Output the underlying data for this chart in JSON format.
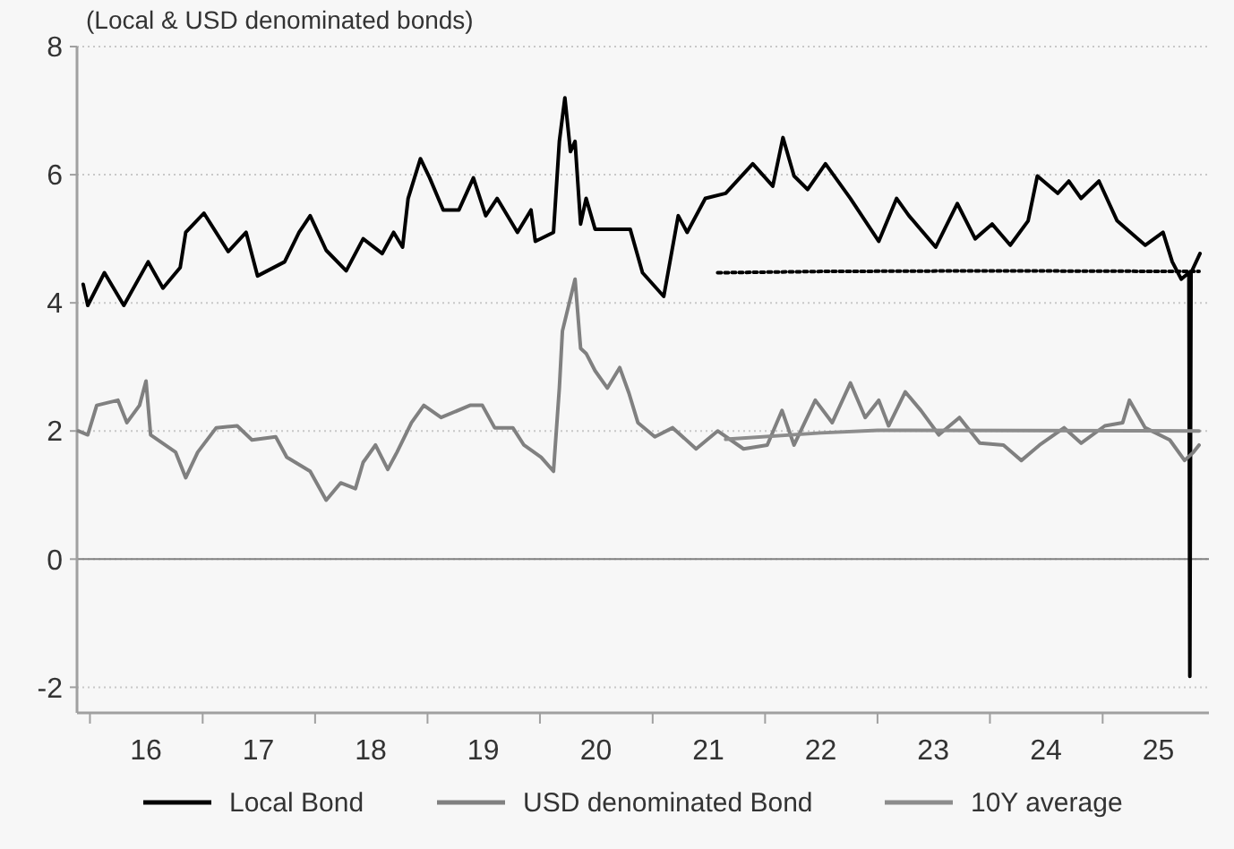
{
  "chart_data": {
    "type": "line",
    "title": "(Local & USD denominated bonds)",
    "xlim": [
      "2015-11-20",
      "2025-12-12"
    ],
    "ylim": [
      -2.4,
      8
    ],
    "xticks": [
      {
        "value": "2016-01-01",
        "label": null
      },
      {
        "value": "2016-07-01",
        "label": "16"
      },
      {
        "value": "2017-01-01",
        "label": null
      },
      {
        "value": "2017-07-01",
        "label": "17"
      },
      {
        "value": "2018-01-01",
        "label": null
      },
      {
        "value": "2018-07-01",
        "label": "18"
      },
      {
        "value": "2019-01-01",
        "label": null
      },
      {
        "value": "2019-07-01",
        "label": "19"
      },
      {
        "value": "2020-01-01",
        "label": null
      },
      {
        "value": "2020-07-01",
        "label": "20"
      },
      {
        "value": "2021-01-01",
        "label": null
      },
      {
        "value": "2021-07-01",
        "label": "21"
      },
      {
        "value": "2022-01-01",
        "label": null
      },
      {
        "value": "2022-07-01",
        "label": "22"
      },
      {
        "value": "2023-01-01",
        "label": null
      },
      {
        "value": "2023-07-01",
        "label": "23"
      },
      {
        "value": "2024-01-01",
        "label": null
      },
      {
        "value": "2024-07-01",
        "label": "24"
      },
      {
        "value": "2025-01-01",
        "label": null
      },
      {
        "value": "2025-07-01",
        "label": "25"
      }
    ],
    "yticks": [
      -2,
      0,
      2,
      4,
      6,
      8
    ],
    "grid": "y",
    "legend": "bottom",
    "ref_lines": [
      {
        "axis": "y",
        "value": 0,
        "color": "#808080"
      }
    ],
    "series": [
      {
        "name": "Local Bond",
        "color": "#000000",
        "x": [
          "2015-12-10",
          "2015-12-25",
          "2016-02-17",
          "2016-04-20",
          "2016-07-08",
          "2016-08-25",
          "2016-10-20",
          "2016-11-07",
          "2017-01-05",
          "2017-03-25",
          "2017-05-22",
          "2017-06-28",
          "2017-09-24",
          "2017-11-10",
          "2017-12-16",
          "2018-02-06",
          "2018-04-12",
          "2018-06-06",
          "2018-08-07",
          "2018-09-13",
          "2018-10-12",
          "2018-10-30",
          "2018-12-09",
          "2019-01-08",
          "2019-02-21",
          "2019-04-13",
          "2019-05-30",
          "2019-07-09",
          "2019-08-15",
          "2019-10-20",
          "2019-12-03",
          "2019-12-17",
          "2020-02-14",
          "2020-03-04",
          "2020-03-22",
          "2020-04-09",
          "2020-04-24",
          "2020-05-12",
          "2020-05-30",
          "2020-06-28",
          "2020-10-20",
          "2020-11-29",
          "2021-02-06",
          "2021-03-25",
          "2021-04-23",
          "2021-06-21",
          "2021-08-26",
          "2021-11-22",
          "2022-01-26",
          "2022-02-28",
          "2022-04-05",
          "2022-05-19",
          "2022-07-16",
          "2022-10-05",
          "2023-01-05",
          "2023-03-04",
          "2023-04-13",
          "2023-07-09",
          "2023-09-17",
          "2023-11-14",
          "2024-01-08",
          "2024-03-07",
          "2024-05-04",
          "2024-06-03",
          "2024-08-08",
          "2024-09-13",
          "2024-10-23",
          "2024-12-20",
          "2025-02-17",
          "2025-05-19",
          "2025-07-16",
          "2025-08-15",
          "2025-09-13",
          "2025-10-08",
          "2025-10-11",
          "2025-10-15",
          "2025-11-13"
        ],
        "values": [
          4.29,
          3.96,
          4.47,
          3.96,
          4.64,
          4.23,
          4.55,
          5.1,
          5.4,
          4.8,
          5.1,
          4.42,
          4.64,
          5.1,
          5.36,
          4.82,
          4.5,
          5.0,
          4.77,
          5.1,
          4.87,
          5.63,
          6.25,
          5.95,
          5.45,
          5.45,
          5.95,
          5.36,
          5.63,
          5.1,
          5.45,
          4.96,
          5.1,
          6.52,
          7.2,
          6.36,
          6.52,
          5.23,
          5.63,
          5.15,
          5.15,
          4.47,
          4.1,
          5.36,
          5.1,
          5.63,
          5.71,
          6.17,
          5.82,
          6.58,
          5.98,
          5.77,
          6.17,
          5.63,
          4.96,
          5.63,
          5.36,
          4.87,
          5.55,
          5.0,
          5.23,
          4.9,
          5.28,
          5.98,
          5.71,
          5.9,
          5.63,
          5.9,
          5.28,
          4.9,
          5.1,
          4.64,
          4.37,
          4.47,
          -1.83,
          4.47,
          4.77
        ]
      },
      {
        "name": "USD denominated Bond",
        "color": "#808080",
        "x": [
          "2015-11-24",
          "2015-12-25",
          "2016-01-23",
          "2016-04-01",
          "2016-04-30",
          "2016-06-10",
          "2016-07-01",
          "2016-07-16",
          "2016-10-05",
          "2016-11-07",
          "2016-12-16",
          "2017-02-14",
          "2017-04-23",
          "2017-06-10",
          "2017-08-26",
          "2017-10-01",
          "2017-12-16",
          "2018-02-06",
          "2018-03-25",
          "2018-05-12",
          "2018-06-06",
          "2018-07-16",
          "2018-08-25",
          "2018-09-24",
          "2018-11-10",
          "2018-12-20",
          "2019-02-14",
          "2019-05-19",
          "2019-06-28",
          "2019-08-07",
          "2019-10-05",
          "2019-11-10",
          "2020-01-05",
          "2020-02-14",
          "2020-03-04",
          "2020-03-14",
          "2020-04-24",
          "2020-05-12",
          "2020-05-30",
          "2020-06-28",
          "2020-08-07",
          "2020-09-16",
          "2020-10-16",
          "2020-11-14",
          "2021-01-08",
          "2021-03-07",
          "2021-05-22",
          "2021-07-31",
          "2021-10-23",
          "2022-01-08",
          "2022-02-25",
          "2022-04-05",
          "2022-06-13",
          "2022-08-07",
          "2022-10-05",
          "2022-11-22",
          "2023-01-05",
          "2023-02-06",
          "2023-04-01",
          "2023-05-22",
          "2023-07-19",
          "2023-09-24",
          "2023-11-29",
          "2024-02-14",
          "2024-04-12",
          "2024-06-10",
          "2024-08-29",
          "2024-10-23",
          "2025-01-08",
          "2025-03-07",
          "2025-03-29",
          "2025-05-19",
          "2025-08-07",
          "2025-09-24",
          "2025-10-23",
          "2025-11-10"
        ],
        "values": [
          2.0,
          1.94,
          2.4,
          2.48,
          2.13,
          2.4,
          2.78,
          1.94,
          1.67,
          1.27,
          1.67,
          2.05,
          2.08,
          1.86,
          1.91,
          1.59,
          1.37,
          0.92,
          1.19,
          1.1,
          1.51,
          1.78,
          1.4,
          1.67,
          2.13,
          2.4,
          2.21,
          2.4,
          2.4,
          2.05,
          2.05,
          1.78,
          1.59,
          1.37,
          2.67,
          3.56,
          4.37,
          3.29,
          3.21,
          2.94,
          2.67,
          2.99,
          2.59,
          2.13,
          1.91,
          2.05,
          1.72,
          2.0,
          1.72,
          1.78,
          2.32,
          1.78,
          2.48,
          2.13,
          2.75,
          2.21,
          2.48,
          2.08,
          2.61,
          2.32,
          1.94,
          2.21,
          1.81,
          1.78,
          1.54,
          1.78,
          2.05,
          1.81,
          2.08,
          2.13,
          2.48,
          2.05,
          1.86,
          1.54,
          1.67,
          1.78
        ]
      },
      {
        "name": "10Y average",
        "color": "#8c8c8c",
        "x": [
          "2021-08-26",
          "2022-07-01",
          "2023-01-01",
          "2025-11-10"
        ],
        "values": [
          1.87,
          1.97,
          2.01,
          2.0
        ]
      },
      {
        "color": "#000000",
        "line_style": "dotted",
        "x": [
          "2021-07-31",
          "2022-07-01",
          "2024-01-01",
          "2025-11-10"
        ],
        "values": [
          4.47,
          4.49,
          4.5,
          4.49
        ]
      }
    ]
  }
}
